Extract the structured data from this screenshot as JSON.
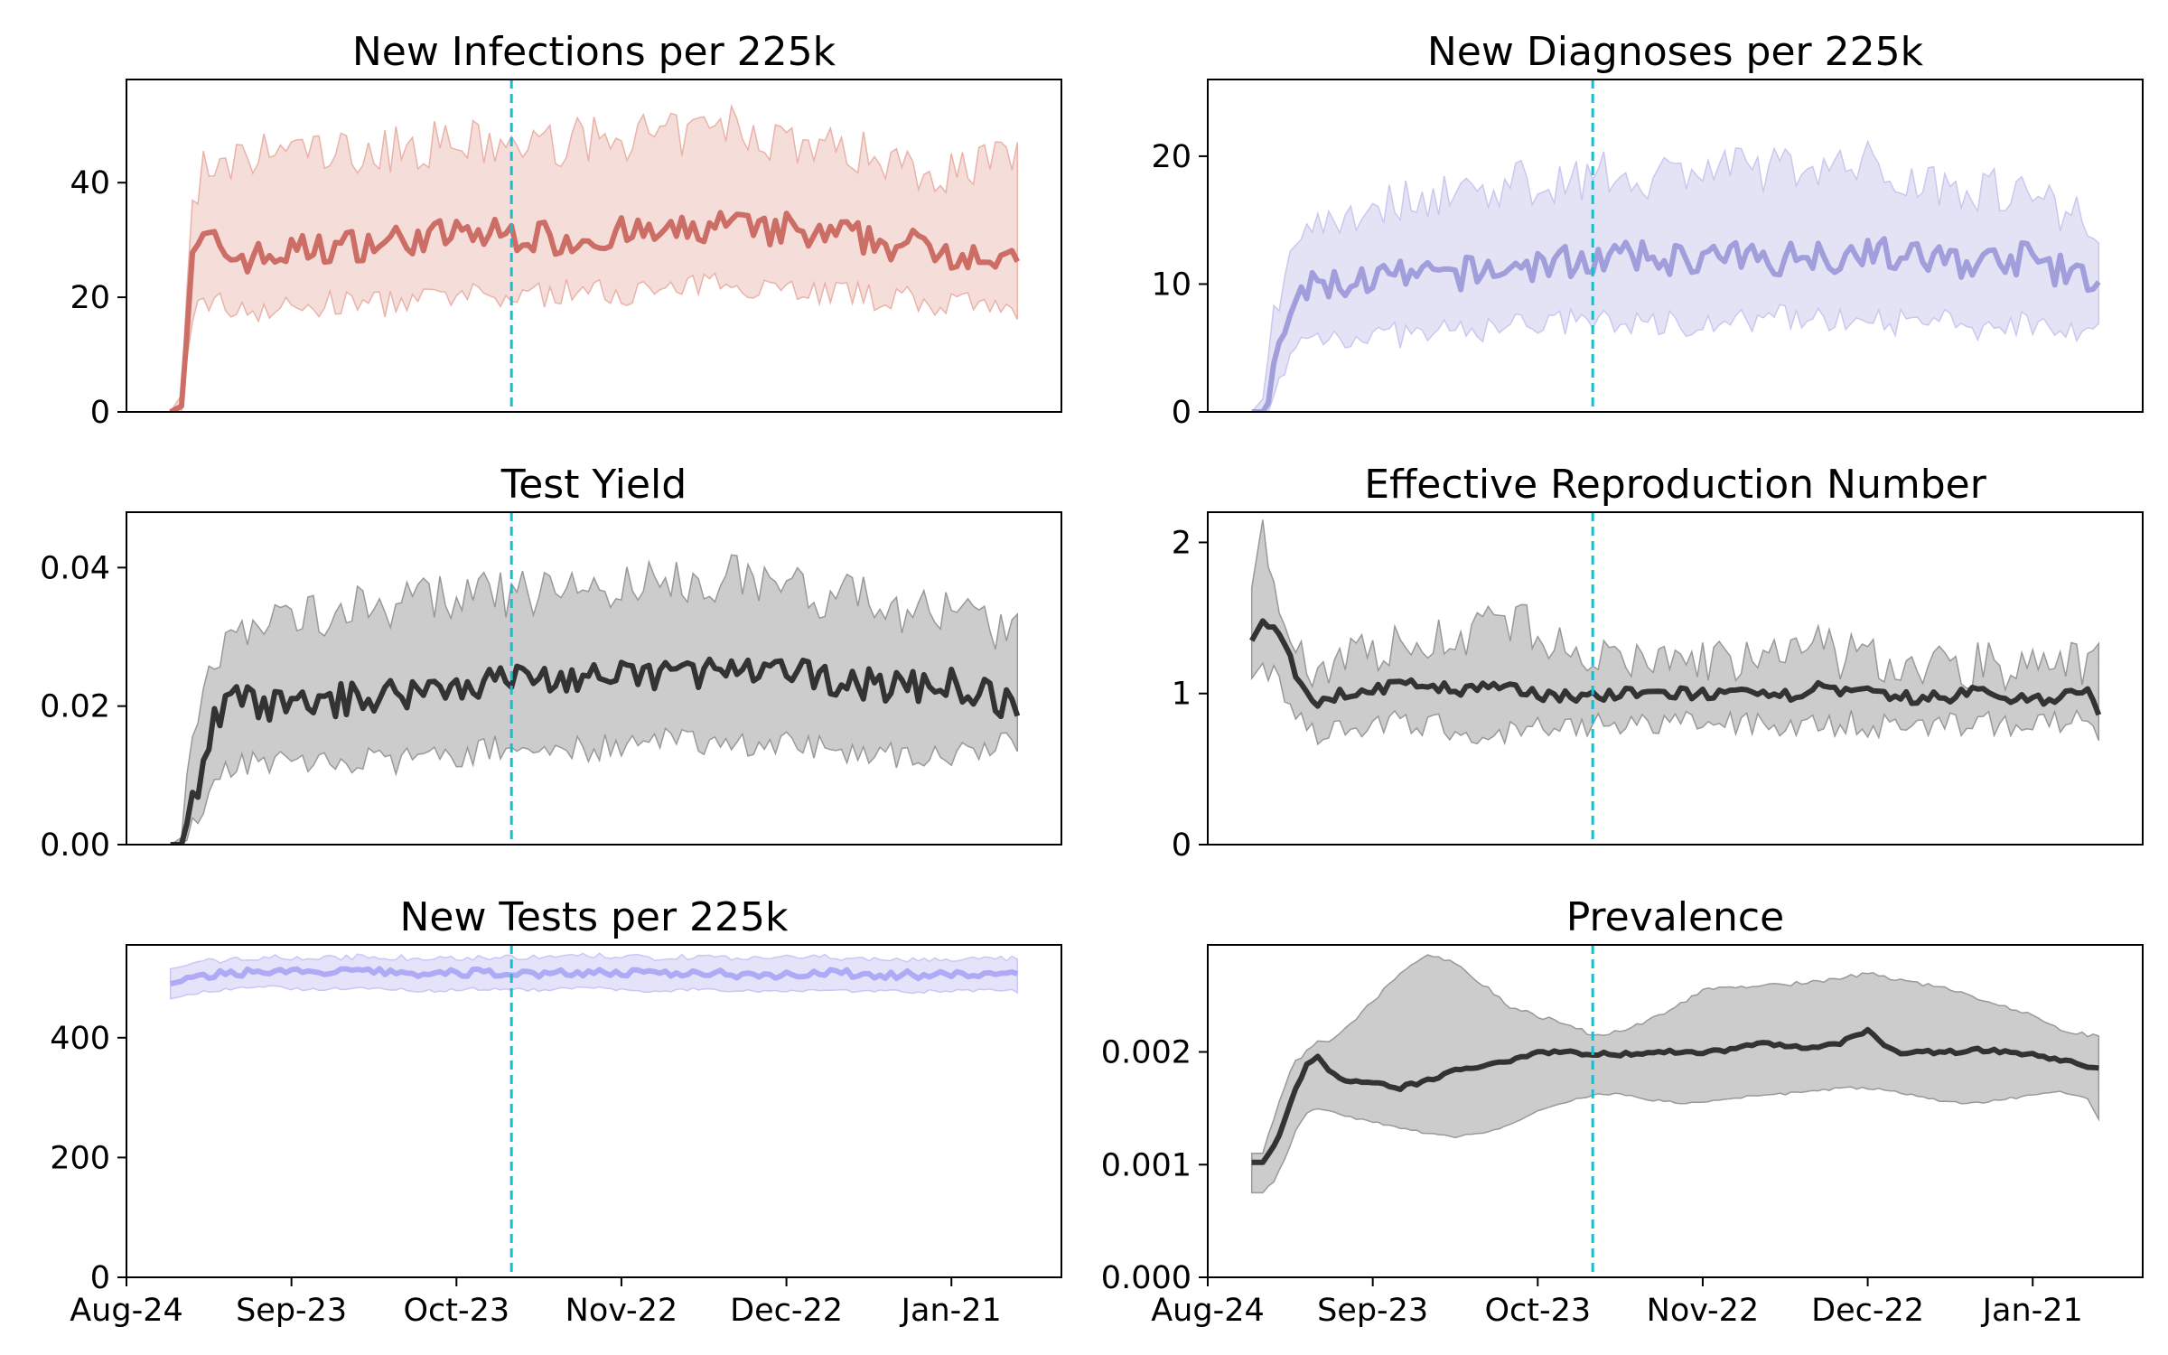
{
  "x_axis": {
    "tick_labels": [
      "Aug-24",
      "Sep-23",
      "Oct-23",
      "Nov-22",
      "Dec-22",
      "Jan-21"
    ],
    "tick_days": [
      0,
      30,
      60,
      90,
      120,
      150
    ],
    "range_days": [
      0,
      170
    ],
    "data_start_day": 8,
    "data_end_day": 162,
    "intervention_day": 70
  },
  "chart_data": [
    {
      "type": "line",
      "title": "New Infections per 225k",
      "ylim": [
        0,
        58
      ],
      "yticks": [
        0,
        20,
        40
      ],
      "ytick_labels": [
        "0",
        "20",
        "40"
      ],
      "color": "#cc6e66",
      "band_color": "#e9b3aa",
      "band_opacity": 0.45,
      "line_width": 6,
      "series": [
        {
          "x": [
            8,
            10,
            12,
            14,
            16,
            20,
            25,
            30,
            40,
            50,
            60,
            70,
            80,
            90,
            100,
            105,
            110,
            115,
            120,
            125,
            130,
            135,
            140,
            145,
            150,
            155,
            162
          ],
          "y": [
            0,
            1,
            26,
            30,
            29,
            27,
            27,
            28,
            29,
            30,
            31,
            31,
            30,
            31,
            31,
            32,
            33,
            31,
            32,
            30,
            31,
            30,
            29,
            29,
            28,
            28,
            25
          ],
          "lower": [
            0,
            0,
            17,
            20,
            19,
            18,
            18,
            18,
            19,
            19,
            20,
            20,
            21,
            21,
            21,
            22,
            23,
            22,
            22,
            21,
            21,
            20,
            20,
            19,
            19,
            18,
            17
          ],
          "upper": [
            0,
            3,
            38,
            42,
            40,
            43,
            45,
            46,
            45,
            46,
            47,
            46,
            47,
            48,
            48,
            49,
            50,
            48,
            48,
            46,
            46,
            45,
            44,
            42,
            42,
            44,
            44
          ]
        }
      ]
    },
    {
      "type": "line",
      "title": "New Diagnoses per 225k",
      "ylim": [
        0,
        26
      ],
      "yticks": [
        0,
        10,
        20
      ],
      "ytick_labels": [
        "0",
        "10",
        "20"
      ],
      "color": "#a19fdb",
      "band_color": "#c9c8ee",
      "band_opacity": 0.5,
      "line_width": 6,
      "series": [
        {
          "x": [
            8,
            10,
            12,
            14,
            16,
            20,
            25,
            30,
            40,
            50,
            60,
            70,
            80,
            90,
            100,
            105,
            110,
            115,
            120,
            125,
            130,
            135,
            140,
            145,
            150,
            155,
            162
          ],
          "y": [
            0,
            0,
            3,
            6,
            9,
            10,
            10,
            10.5,
            10.5,
            11,
            11.5,
            12,
            12,
            12,
            12,
            12,
            12.5,
            12,
            13,
            12,
            12,
            12,
            11.5,
            12,
            12,
            11,
            10
          ],
          "lower": [
            0,
            0,
            1,
            3,
            5,
            6,
            6,
            6,
            6,
            6.5,
            7,
            7,
            7,
            7,
            7,
            7.5,
            7.5,
            7,
            8,
            7,
            7,
            7,
            6.5,
            7,
            7,
            7,
            6
          ],
          "upper": [
            0,
            1,
            7,
            11,
            14,
            15,
            15.5,
            16,
            17,
            17.5,
            18,
            18.5,
            18.5,
            19,
            19,
            19,
            19.5,
            19,
            19.5,
            18.5,
            18,
            18,
            17.5,
            17.5,
            17,
            16,
            15
          ]
        }
      ]
    },
    {
      "type": "line",
      "title": "Test Yield",
      "ylim": [
        0,
        0.048
      ],
      "yticks": [
        0,
        0.02,
        0.04
      ],
      "ytick_labels": [
        "0.00",
        "0.02",
        "0.04"
      ],
      "color": "#333333",
      "band_color": "#999999",
      "band_opacity": 0.5,
      "line_width": 6,
      "series": [
        {
          "x": [
            8,
            10,
            12,
            14,
            16,
            20,
            25,
            30,
            40,
            50,
            60,
            70,
            80,
            90,
            100,
            105,
            110,
            115,
            120,
            125,
            130,
            135,
            140,
            145,
            150,
            155,
            162
          ],
          "y": [
            0,
            0,
            0.006,
            0.012,
            0.018,
            0.021,
            0.02,
            0.02,
            0.021,
            0.022,
            0.023,
            0.024,
            0.024,
            0.024,
            0.025,
            0.025,
            0.025,
            0.024,
            0.025,
            0.024,
            0.024,
            0.023,
            0.023,
            0.023,
            0.023,
            0.022,
            0.02
          ],
          "lower": [
            0,
            0,
            0.002,
            0.006,
            0.01,
            0.012,
            0.012,
            0.012,
            0.012,
            0.012,
            0.013,
            0.014,
            0.014,
            0.014,
            0.015,
            0.015,
            0.015,
            0.014,
            0.015,
            0.014,
            0.014,
            0.013,
            0.013,
            0.013,
            0.013,
            0.013,
            0.015
          ],
          "upper": [
            0,
            0.001,
            0.013,
            0.022,
            0.028,
            0.031,
            0.032,
            0.033,
            0.034,
            0.035,
            0.036,
            0.036,
            0.037,
            0.037,
            0.038,
            0.038,
            0.039,
            0.038,
            0.038,
            0.036,
            0.036,
            0.035,
            0.034,
            0.034,
            0.033,
            0.032,
            0.03
          ]
        }
      ]
    },
    {
      "type": "line",
      "title": "Effective Reproduction Number",
      "ylim": [
        0,
        2.2
      ],
      "yticks": [
        0,
        1,
        2
      ],
      "ytick_labels": [
        "0",
        "1",
        "2"
      ],
      "color": "#333333",
      "band_color": "#999999",
      "band_opacity": 0.5,
      "line_width": 6,
      "series": [
        {
          "x": [
            8,
            10,
            12,
            14,
            16,
            18,
            20,
            25,
            30,
            35,
            40,
            45,
            50,
            55,
            60,
            70,
            80,
            90,
            100,
            105,
            110,
            115,
            120,
            125,
            130,
            135,
            140,
            145,
            150,
            155,
            160,
            162
          ],
          "y": [
            1.35,
            1.48,
            1.45,
            1.3,
            1.15,
            1.0,
            0.95,
            1.0,
            1.03,
            1.05,
            1.07,
            1.0,
            1.05,
            1.02,
            1.0,
            0.98,
            1.0,
            1.0,
            0.98,
            0.98,
            1.05,
            1.0,
            1.0,
            0.97,
            0.97,
            0.98,
            1.02,
            0.97,
            0.97,
            0.97,
            1.02,
            0.85
          ],
          "lower": [
            1.1,
            1.2,
            1.15,
            1.0,
            0.88,
            0.8,
            0.75,
            0.78,
            0.8,
            0.8,
            0.8,
            0.75,
            0.76,
            0.75,
            0.76,
            0.78,
            0.8,
            0.8,
            0.8,
            0.8,
            0.82,
            0.8,
            0.8,
            0.78,
            0.78,
            0.79,
            0.82,
            0.8,
            0.8,
            0.8,
            0.8,
            0.66
          ],
          "upper": [
            1.7,
            2.15,
            1.8,
            1.55,
            1.35,
            1.2,
            1.15,
            1.25,
            1.3,
            1.3,
            1.35,
            1.38,
            1.45,
            1.45,
            1.42,
            1.2,
            1.22,
            1.22,
            1.22,
            1.22,
            1.3,
            1.25,
            1.22,
            1.2,
            1.2,
            1.18,
            1.2,
            1.18,
            1.18,
            1.18,
            1.22,
            1.48
          ]
        }
      ]
    },
    {
      "type": "line",
      "title": "New Tests per 225k",
      "ylim": [
        0,
        555
      ],
      "yticks": [
        0,
        200,
        400
      ],
      "ytick_labels": [
        "0",
        "200",
        "400"
      ],
      "color": "#aeaaf5",
      "band_color": "#c9c7f6",
      "band_opacity": 0.5,
      "line_width": 6,
      "series": [
        {
          "x": [
            8,
            15,
            25,
            35,
            45,
            55,
            65,
            75,
            85,
            95,
            105,
            115,
            125,
            135,
            145,
            155,
            162
          ],
          "y": [
            490,
            505,
            512,
            508,
            511,
            506,
            509,
            507,
            510,
            506,
            509,
            505,
            508,
            506,
            504,
            506,
            505
          ],
          "lower": [
            465,
            478,
            485,
            480,
            484,
            478,
            482,
            480,
            483,
            478,
            481,
            478,
            480,
            478,
            477,
            479,
            478
          ],
          "upper": [
            515,
            528,
            535,
            532,
            536,
            531,
            535,
            533,
            537,
            533,
            536,
            531,
            535,
            532,
            530,
            532,
            531
          ]
        }
      ]
    },
    {
      "type": "line",
      "title": "Prevalence",
      "ylim": [
        0,
        0.00295
      ],
      "yticks": [
        0,
        0.001,
        0.002
      ],
      "ytick_labels": [
        "0.000",
        "0.001",
        "0.002"
      ],
      "color": "#333333",
      "band_color": "#999999",
      "band_opacity": 0.5,
      "line_width": 6,
      "series": [
        {
          "x": [
            8,
            10,
            12,
            14,
            16,
            18,
            20,
            22,
            25,
            30,
            35,
            40,
            45,
            50,
            55,
            60,
            65,
            70,
            75,
            80,
            85,
            90,
            95,
            100,
            105,
            110,
            115,
            120,
            125,
            130,
            135,
            140,
            145,
            150,
            155,
            160,
            162
          ],
          "y": [
            0.00102,
            0.00102,
            0.00115,
            0.0014,
            0.00168,
            0.00188,
            0.00195,
            0.00185,
            0.00173,
            0.00172,
            0.00168,
            0.00175,
            0.00183,
            0.00188,
            0.00193,
            0.002,
            0.002,
            0.00198,
            0.00198,
            0.002,
            0.002,
            0.002,
            0.00202,
            0.00208,
            0.00205,
            0.00204,
            0.00208,
            0.00218,
            0.002,
            0.002,
            0.002,
            0.00202,
            0.002,
            0.00198,
            0.00192,
            0.00188,
            0.00186
          ],
          "lower": [
            0.00075,
            0.00075,
            0.00085,
            0.00105,
            0.0013,
            0.00145,
            0.0015,
            0.00148,
            0.00143,
            0.00138,
            0.00132,
            0.00128,
            0.00125,
            0.00128,
            0.00135,
            0.00148,
            0.00155,
            0.00162,
            0.00163,
            0.00158,
            0.00155,
            0.00155,
            0.00158,
            0.00162,
            0.00163,
            0.00165,
            0.00168,
            0.00168,
            0.00165,
            0.0016,
            0.00155,
            0.00155,
            0.00158,
            0.00162,
            0.00165,
            0.00158,
            0.0014
          ],
          "upper": [
            0.0011,
            0.0011,
            0.0014,
            0.0017,
            0.00192,
            0.002,
            0.00208,
            0.0021,
            0.0022,
            0.00245,
            0.0027,
            0.00285,
            0.0028,
            0.0026,
            0.0024,
            0.00232,
            0.00225,
            0.00215,
            0.00218,
            0.00228,
            0.0024,
            0.00255,
            0.00258,
            0.00258,
            0.0026,
            0.00262,
            0.00265,
            0.0027,
            0.00265,
            0.0026,
            0.00255,
            0.00248,
            0.0024,
            0.00232,
            0.0022,
            0.00215,
            0.00215
          ]
        }
      ]
    }
  ]
}
